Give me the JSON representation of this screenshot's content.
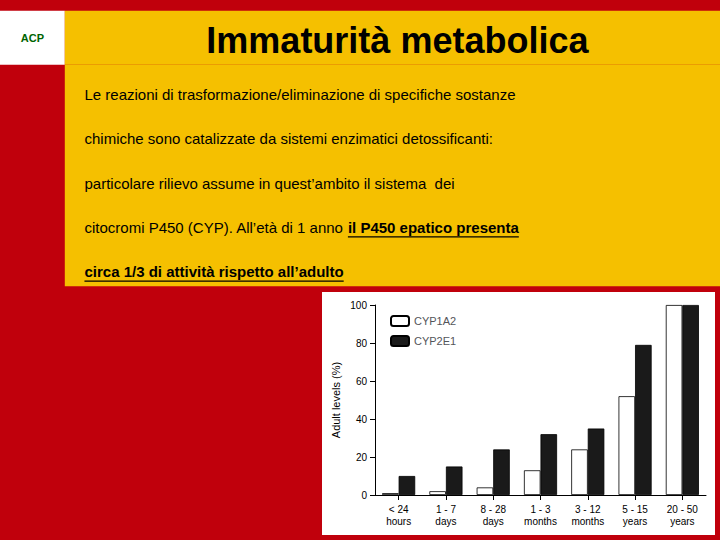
{
  "chart_data": {
    "type": "bar",
    "title": "Immaturità metabolica",
    "annotations": [
      "ACP",
      "Le reazioni di trasformazione/eliminazione di specifiche sostanze",
      "chimiche sono catalizzate da sistemi enzimatici detossificanti:",
      "particolare rilievo assume in quest’ambito il sistema  dei",
      "citocromi P450 (CYP). All’età di 1 anno ",
      "il P450 epatico presenta",
      "circa 1/3 di attività rispetto all’adulto"
    ],
    "categories": [
      "< 24\nhours",
      "1 - 7\ndays",
      "8 - 28\ndays",
      "1 - 3\nmonths",
      "3 - 12\nmonths",
      "5 - 15\nyears",
      "20 - 50\nyears"
    ],
    "series": [
      {
        "name": "CYP1A2",
        "color": "#ffffff",
        "values": [
          1,
          2,
          4,
          13,
          24,
          52,
          100
        ]
      },
      {
        "name": "CYP2E1",
        "color": "#1a1a1a",
        "values": [
          10,
          15,
          24,
          32,
          35,
          79,
          100
        ]
      }
    ],
    "ylabel": "Adult levels (%)",
    "ylim": [
      0,
      100
    ],
    "yticks": [
      0,
      20,
      40,
      60,
      80,
      100
    ],
    "grid": false,
    "legend": "upper left"
  }
}
